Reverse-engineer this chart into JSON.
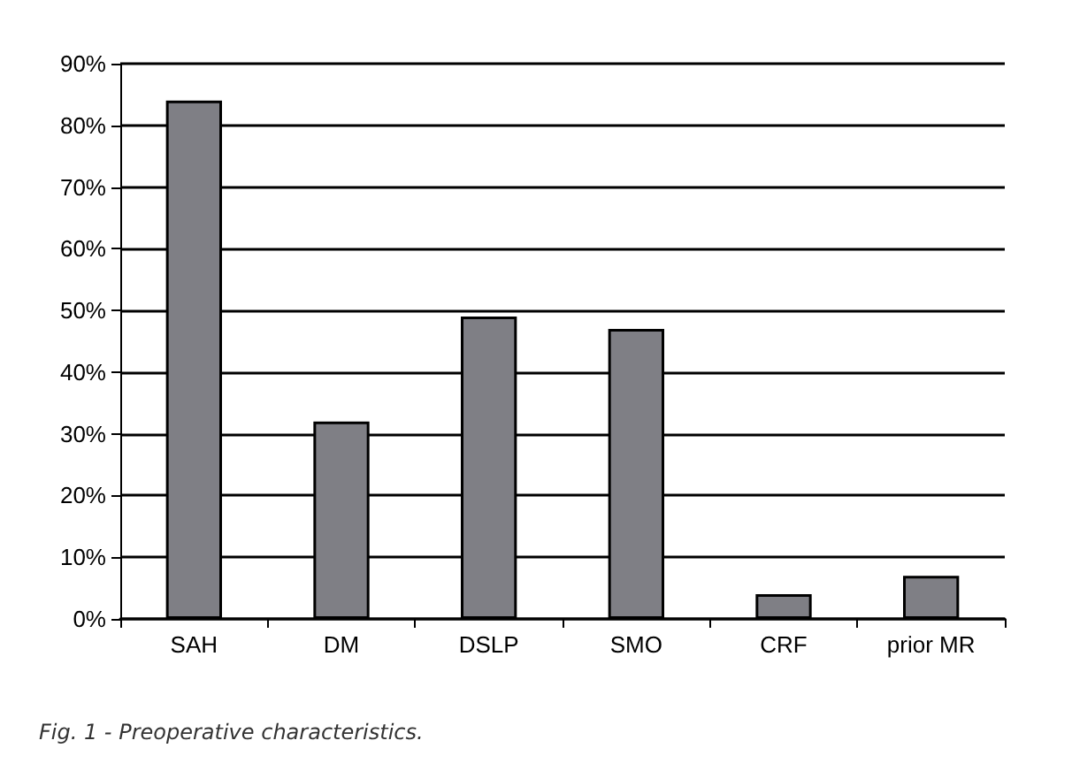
{
  "chart_data": {
    "type": "bar",
    "categories": [
      "SAH",
      "DM",
      "DSLP",
      "SMO",
      "CRF",
      "prior MR"
    ],
    "values": [
      84,
      32,
      49,
      47,
      4,
      7
    ],
    "color": "#7f7f85",
    "ylim": [
      0,
      90
    ],
    "yticks": [
      {
        "value": 0,
        "label": "0%"
      },
      {
        "value": 10,
        "label": "10%"
      },
      {
        "value": 20,
        "label": "20%"
      },
      {
        "value": 30,
        "label": "30%"
      },
      {
        "value": 40,
        "label": "40%"
      },
      {
        "value": 50,
        "label": "50%"
      },
      {
        "value": 60,
        "label": "60%"
      },
      {
        "value": 70,
        "label": "70%"
      },
      {
        "value": 80,
        "label": "80%"
      },
      {
        "value": 90,
        "label": "90%"
      }
    ],
    "grid": "y",
    "annotations": [
      "Fig. 1 - Preoperative characteristics."
    ]
  }
}
